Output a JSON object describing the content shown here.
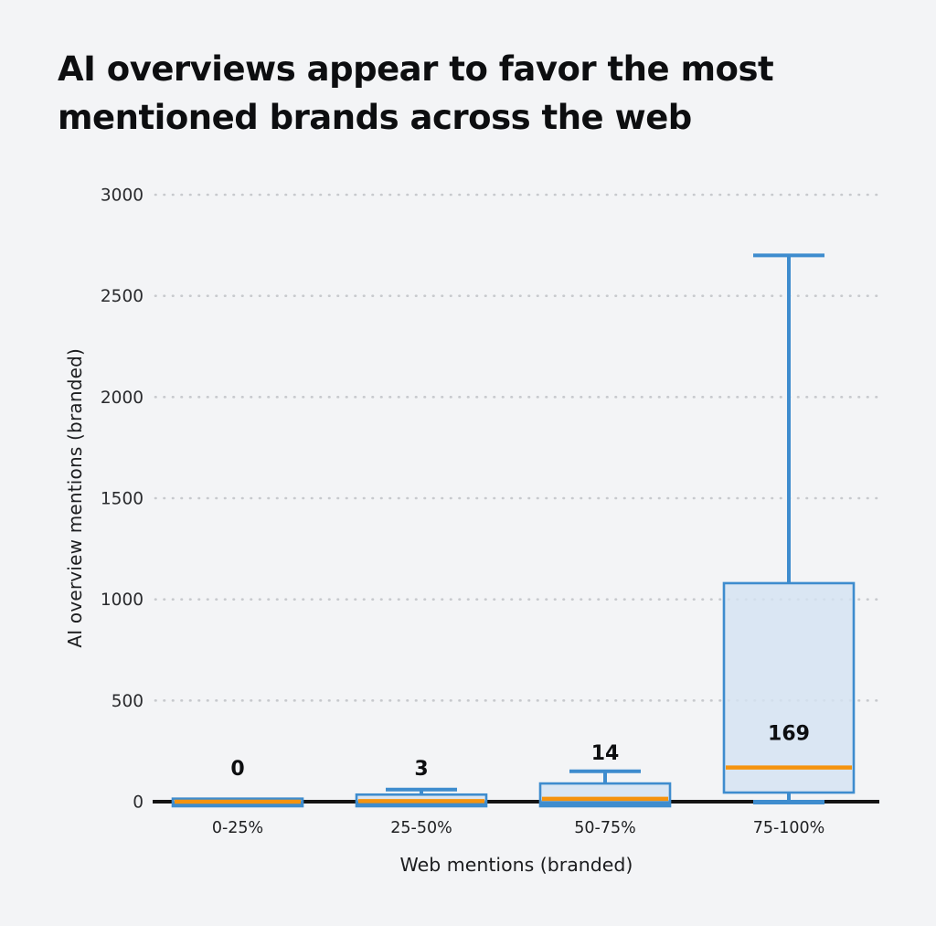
{
  "title": "AI overviews appear to favor the most mentioned brands across the web",
  "chart_data": {
    "type": "box",
    "title": "AI overviews appear to favor the most mentioned brands across the web",
    "xlabel": "Web mentions (branded)",
    "ylabel": "AI overview mentions (branded)",
    "ylim": [
      0,
      3000
    ],
    "yticks": [
      0,
      500,
      1000,
      1500,
      2000,
      2500,
      3000
    ],
    "grid": "horizontal-dotted",
    "legend": "none",
    "categories": [
      "0-25%",
      "25-50%",
      "50-75%",
      "75-100%"
    ],
    "boxes": [
      {
        "category": "0-25%",
        "min": 0,
        "q1": 0,
        "median": 0,
        "q3": 15,
        "max": 15,
        "label": "0"
      },
      {
        "category": "25-50%",
        "min": 0,
        "q1": 0,
        "median": 3,
        "q3": 35,
        "max": 60,
        "label": "3"
      },
      {
        "category": "50-75%",
        "min": 0,
        "q1": 0,
        "median": 14,
        "q3": 90,
        "max": 150,
        "label": "14"
      },
      {
        "category": "75-100%",
        "min": 0,
        "q1": 45,
        "median": 169,
        "q3": 1080,
        "max": 2700,
        "label": "169"
      }
    ],
    "colors": {
      "background": "#f3f4f6",
      "box_border": "#3e8cce",
      "box_fill": "#d4e3f1",
      "median": "#f5930e",
      "axis": "#141414",
      "gridline": "#c7c9cd",
      "tick_text": "#2a2b2e",
      "label_text": "#0d0e10"
    }
  }
}
